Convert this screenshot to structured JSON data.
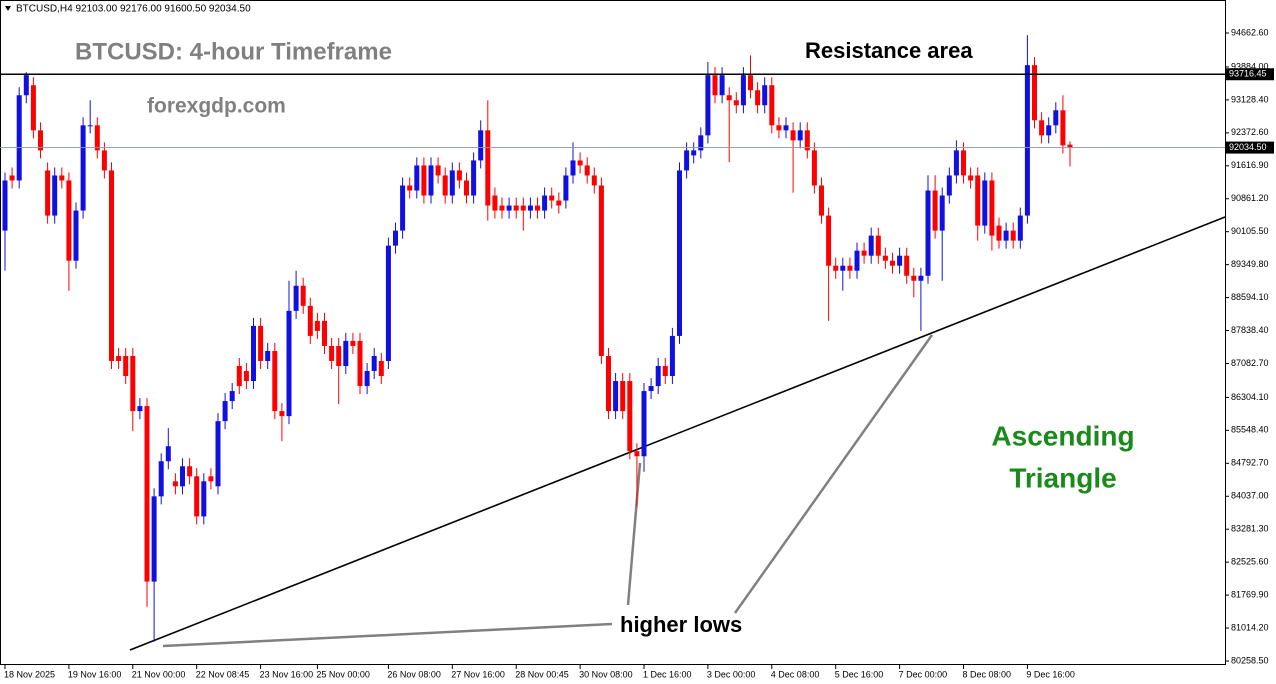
{
  "header": "BTCUSD,H4  92103.00 92176.00 91600.50 92034.50",
  "chart_data": {
    "type": "candlestick",
    "title": "BTCUSD: 4-hour Timeframe",
    "subtitle": "forexgdp.com",
    "annotations": {
      "resistance": "Resistance area",
      "lows": "higher lows",
      "pattern": [
        "Ascending",
        "Triangle"
      ]
    },
    "up_color": "#1010e0",
    "down_color": "#ff0000",
    "resistance": {
      "value": 93716.45,
      "label": "93716.45"
    },
    "last_price": {
      "value": 92034.5,
      "label": "92034.50"
    },
    "categories": [
      "18 Nov 2025",
      null,
      null,
      null,
      null,
      null,
      null,
      null,
      null,
      "19 Nov 16:00",
      null,
      null,
      null,
      null,
      null,
      null,
      null,
      null,
      "21 Nov 00:00",
      null,
      null,
      null,
      null,
      null,
      null,
      null,
      null,
      "22 Nov 08:45",
      null,
      null,
      null,
      null,
      null,
      null,
      null,
      null,
      "23 Nov 16:00",
      null,
      null,
      null,
      null,
      null,
      null,
      null,
      "25 Nov 00:00",
      null,
      null,
      null,
      null,
      null,
      null,
      null,
      null,
      null,
      "26 Nov 08:00",
      null,
      null,
      null,
      null,
      null,
      null,
      null,
      null,
      "27 Nov 16:00",
      null,
      null,
      null,
      null,
      null,
      null,
      null,
      null,
      "28 Nov 00:45",
      null,
      null,
      null,
      null,
      null,
      null,
      null,
      null,
      "30 Nov 08:00",
      null,
      null,
      null,
      null,
      null,
      null,
      null,
      null,
      "1 Dec 16:00",
      null,
      null,
      null,
      null,
      null,
      null,
      null,
      null,
      "3 Dec 00:00",
      null,
      null,
      null,
      null,
      null,
      null,
      null,
      null,
      "4 Dec 08:00",
      null,
      null,
      null,
      null,
      null,
      null,
      null,
      null,
      "5 Dec 16:00",
      null,
      null,
      null,
      null,
      null,
      null,
      null,
      null,
      "7 Dec 00:00",
      null,
      null,
      null,
      null,
      null,
      null,
      null,
      null,
      "8 Dec 08:00",
      null,
      null,
      null,
      null,
      null,
      null,
      null,
      null,
      "9 Dec 16:00",
      null,
      null,
      null,
      null,
      null,
      null
    ],
    "open": [
      90130,
      91395,
      91280,
      93235,
      93465,
      92430,
      91510,
      90475,
      91395,
      91280,
      89440,
      90590,
      92545,
      92545,
      91970,
      91510,
      87255,
      87255,
      87255,
      85990,
      86105,
      82080,
      84035,
      84840,
      84380,
      84265,
      84725,
      84495,
      83575,
      84495,
      84265,
      85760,
      86220,
      87025,
      86910,
      86680,
      87945,
      87140,
      87370,
      85990,
      85875,
      88290,
      88865,
      88405,
      88060,
      88060,
      87485,
      87485,
      87025,
      87600,
      87600,
      86565,
      86910,
      87140,
      87140,
      89785,
      90130,
      91165,
      91050,
      91625,
      90935,
      91625,
      91395,
      90935,
      91510,
      91280,
      90935,
      91740,
      92430,
      90935,
      90705,
      90590,
      90705,
      90705,
      90590,
      90705,
      90590,
      90935,
      90820,
      90820,
      91395,
      91740,
      91625,
      91395,
      91165,
      87255,
      85990,
      86680,
      86680,
      85070,
      84955,
      86450,
      86565,
      87025,
      86795,
      87715,
      91510,
      91855,
      91970,
      92315,
      93695,
      93235,
      93235,
      93120,
      93005,
      93695,
      93350,
      93005,
      93465,
      92545,
      92430,
      92430,
      92200,
      92430,
      91970,
      91165,
      90475,
      89325,
      89210,
      89325,
      89210,
      89670,
      89555,
      90015,
      89555,
      89440,
      89325,
      89555,
      89095,
      88980,
      89095,
      91050,
      90130,
      90935,
      91395,
      91970,
      91395,
      91395,
      90245,
      91280,
      90245,
      89900,
      90130,
      89900,
      90475,
      93925,
      92660,
      92315,
      92545,
      92890,
      92103
    ],
    "high": [
      91464,
      91579,
      93419,
      93764,
      93649,
      92614,
      91694,
      91579,
      91579,
      91464,
      90774,
      92729,
      93120,
      92729,
      92154,
      91694,
      87439,
      87439,
      87439,
      86289,
      86289,
      84219,
      85024,
      85600,
      84564,
      84909,
      84909,
      84679,
      84564,
      84679,
      85944,
      86404,
      86634,
      87209,
      87094,
      88129,
      88129,
      87554,
      87554,
      86174,
      88980,
      89210,
      89049,
      88589,
      88244,
      88244,
      87669,
      87669,
      87784,
      87784,
      87784,
      87094,
      87439,
      87324,
      89969,
      90314,
      91349,
      91349,
      91809,
      91809,
      91809,
      91809,
      91579,
      91694,
      91694,
      91464,
      91924,
      92660,
      93120,
      91119,
      90889,
      90889,
      90889,
      90889,
      90889,
      90889,
      91119,
      91119,
      91004,
      91579,
      92154,
      91924,
      91809,
      91579,
      91349,
      87439,
      86864,
      86864,
      86864,
      85254,
      86634,
      86749,
      87209,
      87209,
      87899,
      91694,
      92154,
      92154,
      92499,
      94000,
      93879,
      93879,
      93419,
      93304,
      93879,
      94150,
      93534,
      93649,
      93649,
      92729,
      92729,
      92614,
      92614,
      92614,
      92154,
      91349,
      90659,
      89509,
      89509,
      89509,
      89854,
      89854,
      90199,
      90199,
      89739,
      89624,
      89739,
      89739,
      89279,
      89279,
      91400,
      91400,
      91119,
      91579,
      92200,
      92154,
      91579,
      91579,
      91464,
      91464,
      90429,
      90314,
      90314,
      90659,
      94615,
      94109,
      92844,
      92729,
      93074,
      93235,
      92176
    ],
    "low": [
      89210,
      91096,
      91096,
      93051,
      92246,
      91786,
      90291,
      90291,
      91096,
      88750,
      89256,
      90406,
      92361,
      91786,
      91326,
      86956,
      86956,
      86611,
      85530,
      85806,
      81500,
      80700,
      83851,
      84656,
      84081,
      84081,
      84311,
      83391,
      83391,
      84196,
      84081,
      85576,
      86036,
      86381,
      86496,
      86496,
      86956,
      86956,
      85806,
      85300,
      85691,
      88106,
      88221,
      87531,
      87646,
      87301,
      86956,
      86150,
      86841,
      87301,
      86381,
      86381,
      86726,
      86611,
      86956,
      89601,
      89946,
      90866,
      90866,
      90751,
      90751,
      91211,
      90751,
      90751,
      91096,
      90751,
      90751,
      91556,
      90360,
      90406,
      90406,
      90406,
      90406,
      90130,
      90406,
      90406,
      90406,
      90636,
      90521,
      90636,
      91211,
      91441,
      91211,
      90981,
      87071,
      85806,
      85806,
      85806,
      84886,
      83800,
      84600,
      86266,
      86381,
      86611,
      86611,
      87531,
      91326,
      91671,
      91786,
      92131,
      93051,
      93051,
      91700,
      92821,
      92821,
      93166,
      92821,
      92821,
      92361,
      92246,
      92246,
      91000,
      92016,
      91786,
      90981,
      90291,
      88060,
      89026,
      88750,
      89026,
      89026,
      89371,
      89371,
      89371,
      89256,
      89141,
      89141,
      88911,
      88600,
      87830,
      88911,
      89946,
      88980,
      90751,
      91211,
      91211,
      91096,
      89900,
      90061,
      89670,
      89716,
      89716,
      89716,
      89716,
      90291,
      92476,
      92131,
      92131,
      92361,
      91901,
      91600.5
    ],
    "close": [
      91280,
      91280,
      93235,
      93695,
      92430,
      91970,
      90475,
      91395,
      91280,
      89440,
      90590,
      92545,
      92545,
      91970,
      91510,
      87140,
      87140,
      86795,
      85990,
      86105,
      82080,
      84035,
      84840,
      85185,
      84265,
      84725,
      84495,
      83575,
      84380,
      84380,
      85760,
      86220,
      86450,
      86565,
      86680,
      87945,
      87140,
      87370,
      85990,
      85875,
      88290,
      88865,
      88405,
      87715,
      87830,
      87485,
      87140,
      87025,
      87600,
      87485,
      86565,
      86910,
      87255,
      86795,
      89785,
      90130,
      91165,
      91050,
      91625,
      90935,
      91625,
      91395,
      90935,
      91510,
      91280,
      90935,
      91740,
      92430,
      90705,
      90590,
      90590,
      90705,
      90590,
      90590,
      90705,
      90590,
      90935,
      90820,
      90705,
      91395,
      91740,
      91625,
      91395,
      91165,
      87255,
      85990,
      86680,
      85990,
      85070,
      84955,
      86450,
      86565,
      87025,
      86795,
      87715,
      91510,
      91970,
      91970,
      92315,
      93695,
      93235,
      93695,
      93120,
      93005,
      93695,
      93350,
      93005,
      93465,
      92545,
      92430,
      92545,
      92200,
      92430,
      91970,
      91165,
      90475,
      89325,
      89210,
      89325,
      89210,
      89670,
      89555,
      90015,
      89555,
      89440,
      89325,
      89555,
      89095,
      88980,
      89095,
      91050,
      90130,
      90935,
      91395,
      91970,
      91395,
      91280,
      90245,
      91280,
      90015,
      89900,
      90130,
      89900,
      90475,
      93925,
      92660,
      92315,
      92545,
      92890,
      92085,
      92034.5
    ],
    "ylim": [
      80166.8,
      95419.5
    ],
    "yticks": [
      {
        "value": 94662.6,
        "label": "94662.60"
      },
      {
        "value": 93884,
        "label": "93884.00"
      },
      {
        "value": 93128.4,
        "label": "93128.40"
      },
      {
        "value": 92372.6,
        "label": "92372.60"
      },
      {
        "value": 91616.9,
        "label": "91616.90"
      },
      {
        "value": 90861.2,
        "label": "90861.20"
      },
      {
        "value": 90105.5,
        "label": "90105.50"
      },
      {
        "value": 89349.8,
        "label": "89349.80"
      },
      {
        "value": 88594.1,
        "label": "88594.10"
      },
      {
        "value": 87838.4,
        "label": "87838.40"
      },
      {
        "value": 87082.7,
        "label": "87082.70"
      },
      {
        "value": 86304.1,
        "label": "86304.10"
      },
      {
        "value": 85548.4,
        "label": "85548.40"
      },
      {
        "value": 84792.7,
        "label": "84792.70"
      },
      {
        "value": 84037,
        "label": "84037.00"
      },
      {
        "value": 83281.3,
        "label": "83281.30"
      },
      {
        "value": 82525.6,
        "label": "82525.60"
      },
      {
        "value": 81769.9,
        "label": "81769.90"
      },
      {
        "value": 81014.2,
        "label": "81014.20"
      },
      {
        "value": 80258.5,
        "label": "80258.50"
      }
    ]
  }
}
